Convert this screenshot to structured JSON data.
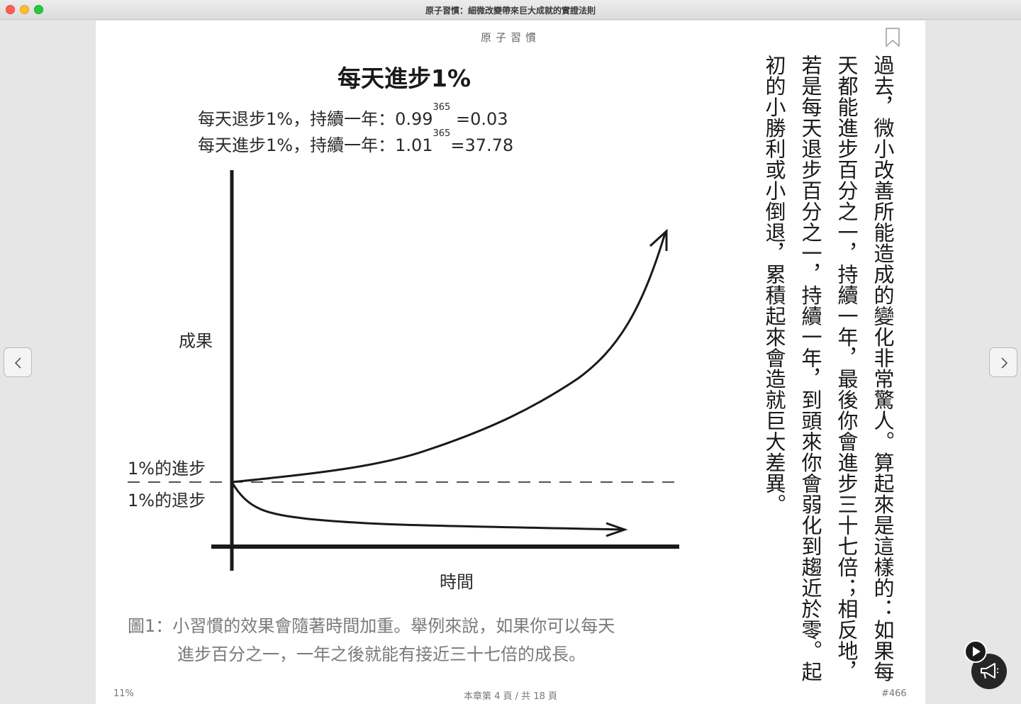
{
  "window": {
    "title": "原子習慣：細微改變帶來巨大成就的實證法則"
  },
  "page": {
    "running_header": "原子習慣",
    "figure": {
      "title": "每天進步1%",
      "formula_decline": {
        "text": "每天退步1%，持續一年：0.99",
        "exp": "365",
        "result": " =0.03"
      },
      "formula_improve": {
        "text": "每天進步1%，持續一年：1.01",
        "exp": "365",
        "result": "=37.78"
      },
      "y_axis_label": "成果",
      "x_axis_label": "時間",
      "improve_label": "1%的進步",
      "decline_label": "1%的退步",
      "caption_line1": "圖1：小習慣的效果會隨著時間加重。舉例來說，如果你可以每天",
      "caption_line2": "進步百分之一，一年之後就能有接近三十七倍的成長。"
    },
    "body_text": "過去，微小改善所能造成的變化非常驚人。算起來是這樣的：如果每天都能進步百分之一，持續一年，最後你會進步三十七倍；相反地，若是每天退步百分之一，持續一年，到頭來你會弱化到趨近於零。起初的小勝利或小倒退，累積起來會造就巨大差異。",
    "footer": {
      "progress": "11%",
      "pages": "本章第 4 頁 / 共 18 頁",
      "location": "#466"
    }
  },
  "icons": {
    "bookmark": "bookmark-icon",
    "prev": "chevron-left-icon",
    "next": "chevron-right-icon",
    "play": "play-icon",
    "announce": "megaphone-icon"
  }
}
